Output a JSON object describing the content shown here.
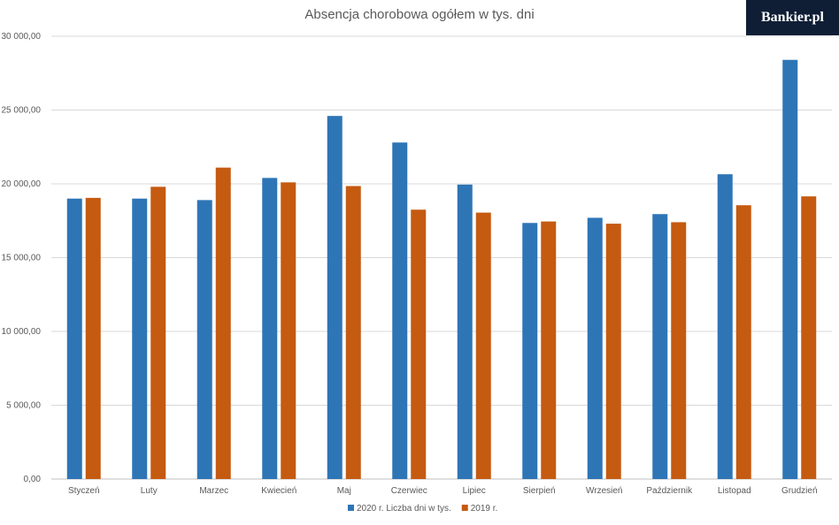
{
  "brand": {
    "logo_text": "Bankier.pl",
    "color": "#0f1e35"
  },
  "chart_data": {
    "type": "bar",
    "title": "Absencja chorobowa ogółem w tys. dni",
    "xlabel": "",
    "ylabel": "",
    "ylim": [
      0,
      30000
    ],
    "yticks": [
      "0,00",
      "5 000,00",
      "10 000,00",
      "15 000,00",
      "20 000,00",
      "25 000,00",
      "30 000,00"
    ],
    "grid": true,
    "legend_position": "bottom",
    "categories": [
      "Styczeń",
      "Luty",
      "Marzec",
      "Kwiecień",
      "Maj",
      "Czerwiec",
      "Lipiec",
      "Sierpień",
      "Wrzesień",
      "Październik",
      "Listopad",
      "Grudzień"
    ],
    "series": [
      {
        "name": "2020 r. Liczba dni w tys.",
        "color": "#2e75b6",
        "values": [
          19000,
          19000,
          18900,
          20400,
          24600,
          22800,
          19950,
          17350,
          17700,
          17950,
          20650,
          28400
        ]
      },
      {
        "name": "2019 r.",
        "color": "#c55a11",
        "values": [
          19050,
          19800,
          21100,
          20100,
          19850,
          18250,
          18050,
          17450,
          17300,
          17400,
          18550,
          19150
        ]
      }
    ]
  }
}
